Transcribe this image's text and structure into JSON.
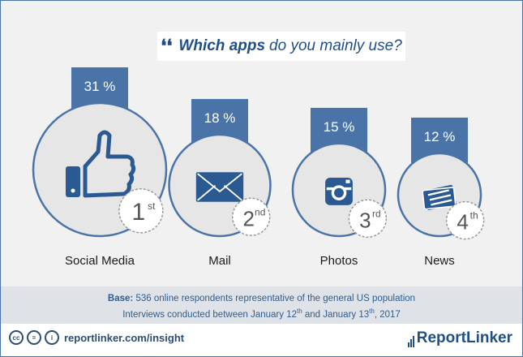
{
  "header": {
    "quote_mark": "❛❛",
    "title_bold": "Which apps",
    "title_rest": "do you mainly use?"
  },
  "chart_data": {
    "type": "bubble",
    "categories": [
      "Social Media",
      "Mail",
      "Photos",
      "News"
    ],
    "values": [
      31,
      18,
      15,
      12
    ],
    "value_labels": [
      "31 %",
      "18 %",
      "15 %",
      "12 %"
    ],
    "ranks": [
      {
        "num": "1",
        "suffix": "st"
      },
      {
        "num": "2",
        "suffix": "nd"
      },
      {
        "num": "3",
        "suffix": "rd"
      },
      {
        "num": "4",
        "suffix": "th"
      }
    ],
    "icons": [
      "thumbs-up-icon",
      "envelope-icon",
      "camera-icon",
      "newspaper-icon"
    ],
    "colors": {
      "accent": "#4a74a8",
      "circle_fill": "#e6e6e6",
      "dark": "#2b5a92"
    }
  },
  "footer": {
    "base_label": "Base:",
    "base_text": "536 online respondents representative of the general US population",
    "interviews_a": "Interviews conducted between January 12",
    "sup1": "th",
    "interviews_b": " and January 13",
    "sup2": "th",
    "interviews_c": ", 2017"
  },
  "bottom": {
    "cc_icons": [
      "cc",
      "=",
      "i"
    ],
    "site": "reportlinker.com/insight",
    "brand": "ReportLinker"
  }
}
